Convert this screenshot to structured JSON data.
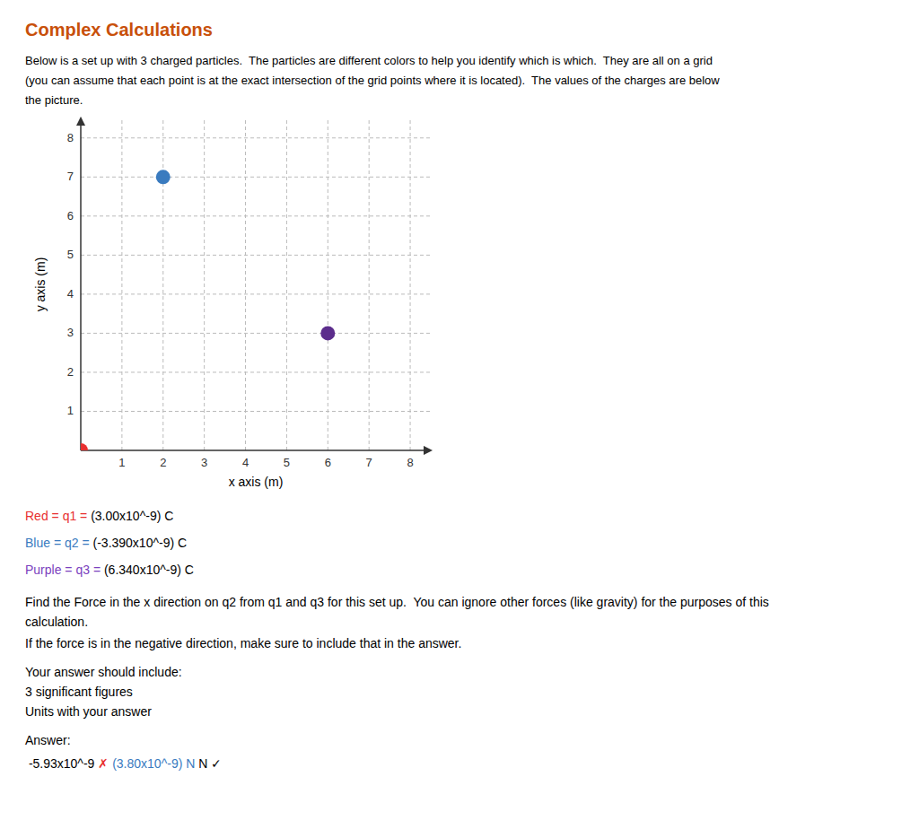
{
  "chart_data": {
    "type": "scatter",
    "title": "Complex Calculations",
    "title_color": "#c8500a",
    "x": [
      0,
      2,
      6
    ],
    "values": [
      0,
      7,
      3
    ],
    "colors": [
      "#e83030",
      "#3a7bbf",
      "#5c2d8c"
    ],
    "xlabel": "x axis (m)",
    "ylabel": "y axis (m)",
    "xlim": [
      0,
      8.5
    ],
    "ylim": [
      0,
      8.5
    ],
    "xticks": [
      1,
      2,
      3,
      4,
      5,
      6,
      7,
      8
    ],
    "yticks": [
      1,
      2,
      3,
      4,
      5,
      6,
      7,
      8
    ],
    "grid": true,
    "annotations": [
      [
        {
          "text": "Below is a set up with 3 charged particles.  The particles are different colors to help you identify which is which.  They are all on a grid"
        }
      ],
      [
        {
          "text": "(you can assume that each point is at the exact intersection of the grid points where it is located).  The values of the charges are below"
        }
      ],
      [
        {
          "text": "the picture."
        }
      ],
      [
        {
          "text": "Red = q1 = ",
          "color": "#e83030"
        },
        {
          "text": "(3.00x10^-9) C"
        }
      ],
      [
        {
          "text": "Blue = q2 = ",
          "color": "#3a7bbf"
        },
        {
          "text": "(-3.390x10^-9) C"
        }
      ],
      [
        {
          "text": "Purple = q3 = ",
          "color": "#7b3fbe"
        },
        {
          "text": "(6.340x10^-9) C"
        }
      ],
      [
        {
          "text": "Find the "
        },
        {
          "text": "Force in the x direction on q2 from q1 and q3"
        },
        {
          "text": " for this set up.  You can ignore other forces (like gravity) for the purposes of this"
        }
      ],
      [
        {
          "text": "calculation."
        }
      ],
      [
        {
          "text": "If the force is in the negative direction, make sure to include that in the answer."
        }
      ],
      [
        {
          "text": "Your answer should include:"
        }
      ],
      [
        {
          "text": "3"
        },
        {
          "text": " significant figures"
        }
      ],
      [
        {
          "text": "Units"
        },
        {
          "text": " with your answer"
        }
      ],
      [
        {
          "text": "Answer:"
        }
      ],
      [
        {
          "text": " -5.93x10^-9 "
        },
        {
          "text": "✗",
          "color": "#e83030"
        },
        {
          "text": " (3.80x10^-9) N",
          "color": "#3a7bbf"
        },
        {
          "text": " N ✓"
        }
      ]
    ]
  }
}
